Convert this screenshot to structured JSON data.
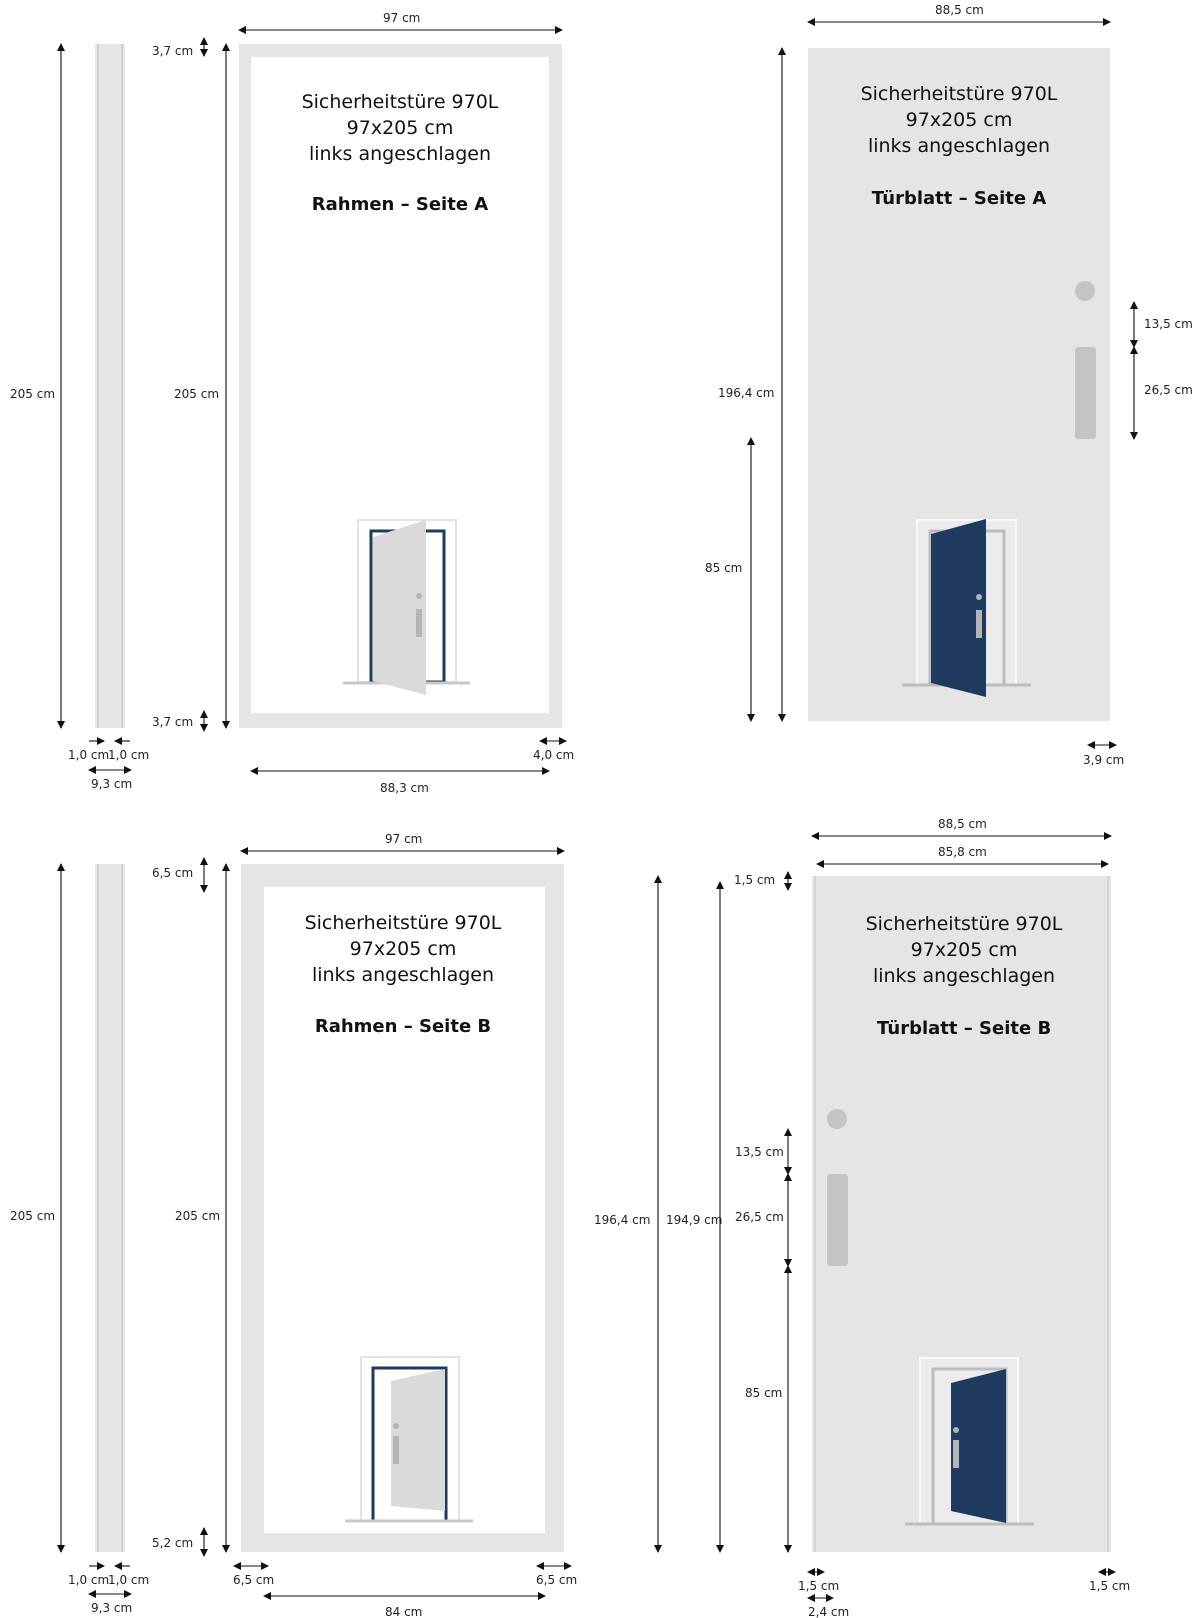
{
  "colors": {
    "frame": "#e5e5e5",
    "door_blue": "#1f3a5f",
    "door_grey": "#dadada",
    "handle": "#c4c4c4",
    "line": "#111111"
  },
  "icons": [
    "door-open-icon",
    "handle-icon",
    "lock-cylinder-icon"
  ],
  "panels": {
    "frame_a": {
      "title_line1": "Sicherheitstüre 970L",
      "title_line2": "97x205 cm",
      "title_line3": "links angeschlagen",
      "subtitle": "Rahmen – Seite A",
      "dims": {
        "width": "97 cm",
        "height": "205 cm",
        "top": "3,7 cm",
        "bottom": "3,7 cm",
        "inner": "88,3 cm",
        "side": "4,0 cm"
      }
    },
    "leaf_a": {
      "title_line1": "Sicherheitstüre 970L",
      "title_line2": "97x205 cm",
      "title_line3": "links angeschlagen",
      "subtitle": "Türblatt – Seite A",
      "dims": {
        "width": "88,5 cm",
        "height": "196,4 cm",
        "handle_height": "85 cm",
        "cyl_gap": "13,5 cm",
        "plate": "26,5 cm",
        "edge": "3,9 cm"
      }
    },
    "frame_b": {
      "title_line1": "Sicherheitstüre 970L",
      "title_line2": "97x205 cm",
      "title_line3": "links angeschlagen",
      "subtitle": "Rahmen – Seite B",
      "dims": {
        "width": "97 cm",
        "height": "205 cm",
        "top": "6,5 cm",
        "bottom": "5,2 cm",
        "inner": "84 cm",
        "left": "6,5 cm",
        "right": "6,5 cm"
      }
    },
    "leaf_b": {
      "title_line1": "Sicherheitstüre 970L",
      "title_line2": "97x205 cm",
      "title_line3": "links angeschlagen",
      "subtitle": "Türblatt – Seite B",
      "dims": {
        "outer_width": "88,5 cm",
        "inner_width": "85,8 cm",
        "top": "1,5 cm",
        "h1": "196,4 cm",
        "h2": "194,9 cm",
        "cyl_gap": "13,5 cm",
        "plate": "26,5 cm",
        "handle_height": "85 cm",
        "left": "1,5 cm",
        "right": "1,5 cm",
        "offset": "2,4 cm"
      }
    }
  },
  "profiles": {
    "a": {
      "height": "205 cm",
      "wall1": "1,0 cm",
      "wall2": "1,0 cm",
      "depth": "9,3 cm"
    },
    "b": {
      "height": "205 cm",
      "wall1": "1,0 cm",
      "wall2": "1,0 cm",
      "depth": "9,3 cm"
    }
  }
}
